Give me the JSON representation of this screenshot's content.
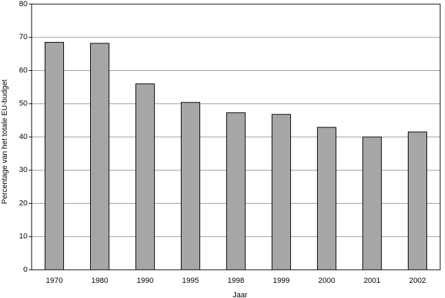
{
  "chart_data": {
    "type": "bar",
    "x_label": "Jaar",
    "y_label": "Percentage van het totale EU-budget",
    "categories": [
      "1970",
      "1980",
      "1990",
      "1995",
      "1998",
      "1999",
      "2000",
      "2001",
      "2002"
    ],
    "values": [
      68.5,
      68.2,
      56.0,
      50.4,
      47.3,
      46.8,
      42.9,
      40.0,
      41.5
    ],
    "color": "#a6a6a6",
    "ylim": [
      0,
      80
    ],
    "yticks": [
      0,
      10,
      20,
      30,
      40,
      50,
      60,
      70,
      80
    ],
    "grid": true
  }
}
